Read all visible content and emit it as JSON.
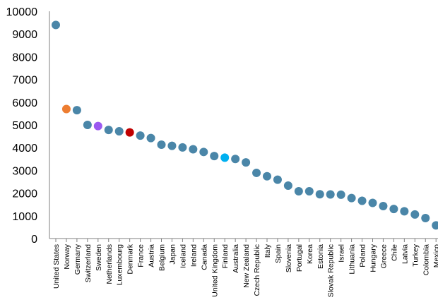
{
  "chart_data": {
    "type": "scatter",
    "title": "",
    "xlabel": "",
    "ylabel": "",
    "ylim": [
      0,
      10000
    ],
    "yticks": [
      0,
      1000,
      2000,
      3000,
      4000,
      5000,
      6000,
      7000,
      8000,
      9000,
      10000
    ],
    "grid": false,
    "legend": "none",
    "default_color": "#4a86a8",
    "categories": [
      "United States",
      "Norway",
      "Germany",
      "Switzerland",
      "Sweden",
      "Netherlands",
      "Luxembourg",
      "Denmark",
      "France",
      "Austria",
      "Belgium",
      "Japan",
      "Iceland",
      "Ireland",
      "Canada",
      "United Kingdom",
      "Finland",
      "Australia",
      "New Zealand",
      "Czech Republic",
      "Italy",
      "Spain",
      "Slovenia",
      "Portugal",
      "Korea",
      "Estonia",
      "Slovak Republic",
      "Israel",
      "Lithuania",
      "Poland",
      "Hungary",
      "Greece",
      "Chile",
      "Latvia",
      "Turkey",
      "Colombia",
      "Mexico"
    ],
    "values": [
      9400,
      5700,
      5650,
      5000,
      4950,
      4780,
      4720,
      4670,
      4530,
      4420,
      4130,
      4080,
      4010,
      3930,
      3810,
      3630,
      3560,
      3500,
      3350,
      2890,
      2740,
      2590,
      2330,
      2080,
      2080,
      1950,
      1940,
      1930,
      1780,
      1660,
      1570,
      1430,
      1300,
      1200,
      1060,
      900,
      580
    ],
    "highlight_colors": {
      "Norway": "#ed7d31",
      "Sweden": "#9b59f0",
      "Denmark": "#c00000",
      "Finland": "#00b0f0"
    }
  }
}
